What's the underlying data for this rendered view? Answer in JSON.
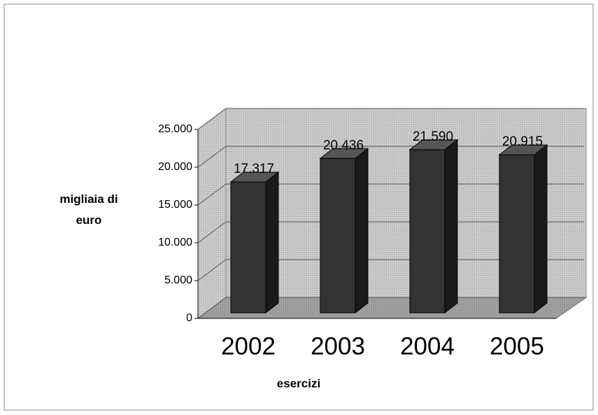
{
  "chart_data": {
    "type": "bar3d",
    "categories": [
      "2002",
      "2003",
      "2004",
      "2005"
    ],
    "values": [
      17317,
      20436,
      21590,
      20915
    ],
    "value_labels": [
      "17.317",
      "20.436",
      "21.590",
      "20.915"
    ],
    "color": "#333333",
    "ylabel": "migliaia di euro",
    "xlabel": "esercizi",
    "ylim": [
      0,
      25000
    ],
    "yticks": [
      0,
      {
        "value": 5000,
        "label": "5.000"
      },
      {
        "value": 10000,
        "label": "10.000"
      },
      {
        "value": 15000,
        "label": "15.000"
      },
      {
        "value": 20000,
        "label": "20.000"
      },
      {
        "value": 25000,
        "label": "25.000"
      }
    ],
    "grid": true
  }
}
